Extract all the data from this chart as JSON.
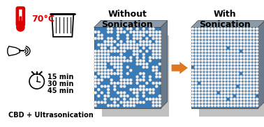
{
  "bg_color": "#ffffff",
  "left_panel": {
    "temp_text": "70°C",
    "temp_color": "#dd0000",
    "times": [
      "15 min",
      "30 min",
      "45 min"
    ],
    "bottom_text": "CBD + Ultrasonication"
  },
  "middle_label": "Without\nSonication",
  "right_label": "With\nSonication",
  "arrow_color": "#e07820",
  "label_fontsize": 9,
  "label_fontweight": "bold",
  "blue_fill": "#3a7ab5",
  "panel_side_color": "#6a7a8a",
  "panel_top_color": "#8a9aaa",
  "shadow_color": "#c0c0c0"
}
